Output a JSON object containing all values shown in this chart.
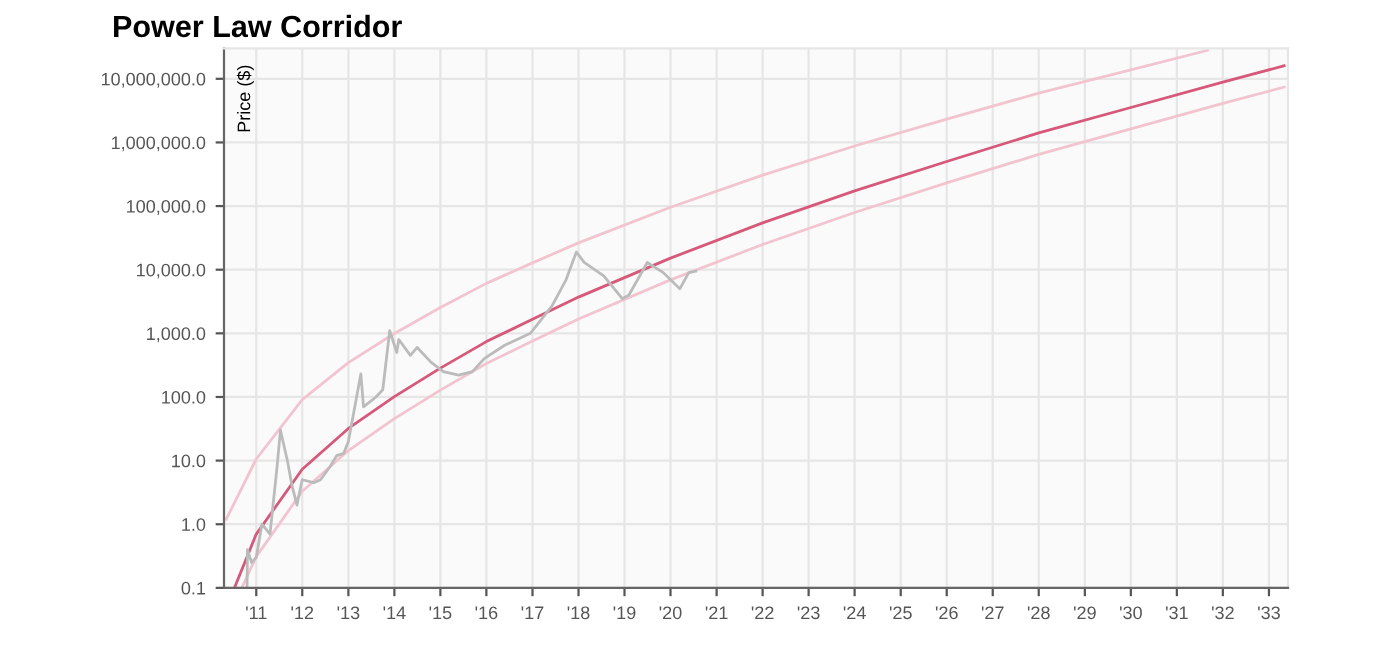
{
  "chart_data": {
    "type": "line",
    "title": "Power Law Corridor",
    "ylabel": "Price ($)",
    "log": "y",
    "grid": true,
    "xlim": [
      "2010-04-20",
      "2033-06-01"
    ],
    "ylim": [
      0.1,
      30000000
    ],
    "xticks": [
      {
        "value": "2011",
        "label": "'11"
      },
      {
        "value": "2012",
        "label": "'12"
      },
      {
        "value": "2013",
        "label": "'13"
      },
      {
        "value": "2014",
        "label": "'14"
      },
      {
        "value": "2015",
        "label": "'15"
      },
      {
        "value": "2016",
        "label": "'16"
      },
      {
        "value": "2017",
        "label": "'17"
      },
      {
        "value": "2018",
        "label": "'18"
      },
      {
        "value": "2019",
        "label": "'19"
      },
      {
        "value": "2020",
        "label": "'20"
      },
      {
        "value": "2021",
        "label": "'21"
      },
      {
        "value": "2022",
        "label": "'22"
      },
      {
        "value": "2023",
        "label": "'23"
      },
      {
        "value": "2024",
        "label": "'24"
      },
      {
        "value": "2025",
        "label": "'25"
      },
      {
        "value": "2026",
        "label": "'26"
      },
      {
        "value": "2027",
        "label": "'27"
      },
      {
        "value": "2028",
        "label": "'28"
      },
      {
        "value": "2029",
        "label": "'29"
      },
      {
        "value": "2030",
        "label": "'30"
      },
      {
        "value": "2031",
        "label": "'31"
      },
      {
        "value": "2032",
        "label": "'32"
      },
      {
        "value": "2033",
        "label": "'33"
      }
    ],
    "yticks": [
      {
        "value": 0.1,
        "label": "0.1"
      },
      {
        "value": 1,
        "label": "1.0"
      },
      {
        "value": 10,
        "label": "10.0"
      },
      {
        "value": 100,
        "label": "100.0"
      },
      {
        "value": 1000,
        "label": "1,000.0"
      },
      {
        "value": 10000,
        "label": "10,000.0"
      },
      {
        "value": 100000,
        "label": "100,000.0"
      },
      {
        "value": 1000000,
        "label": "1,000,000.0"
      },
      {
        "value": 10000000,
        "label": "10,000,000.0"
      }
    ],
    "series": [
      {
        "color": "#f2c4cf",
        "x": [
          "2010-05-08",
          "2011",
          "2012",
          "2013",
          "2014",
          "2015",
          "2016",
          "2017",
          "2018",
          "2020",
          "2022",
          "2024",
          "2026",
          "2028",
          "2030",
          "2031-09-01"
        ],
        "values": [
          1.2,
          10.6,
          91,
          347,
          993,
          2550,
          6100,
          12800,
          26400,
          95700,
          307000,
          878000,
          2320000,
          5950000,
          13800000,
          28000000
        ]
      },
      {
        "color": "#f2c4cf",
        "x": [
          "2010-09-08",
          "2011",
          "2012",
          "2013",
          "2014",
          "2015",
          "2016",
          "2017",
          "2018",
          "2020",
          "2022",
          "2024",
          "2026",
          "2028",
          "2030",
          "2032",
          "2033-05-01"
        ],
        "values": [
          0.1,
          0.31,
          3.3,
          14.4,
          45.7,
          128,
          336,
          755,
          1680,
          6920,
          24900,
          79100,
          231000,
          649000,
          1630000,
          4100000,
          7400000
        ]
      },
      {
        "color": "#d6587a",
        "x": [
          "2010-07-12",
          "2011",
          "2012",
          "2013",
          "2014",
          "2015",
          "2016",
          "2017",
          "2018",
          "2020",
          "2022",
          "2024",
          "2026",
          "2028",
          "2030",
          "2032",
          "2033-05-01"
        ],
        "values": [
          0.1,
          0.7,
          7.3,
          32,
          101,
          284,
          741,
          1670,
          3710,
          15200,
          54500,
          173000,
          502000,
          1410000,
          3540000,
          8870000,
          16000000
        ]
      },
      {
        "color": "#bbbbbb",
        "x": [
          "2010-10-20",
          "2010-10-23",
          "2010-11-25",
          "2011-01-01",
          "2011-02-15",
          "2011-04-20",
          "2011-06-15",
          "2011-07-12",
          "2011-09-05",
          "2011-10-12",
          "2011-11-20",
          "2012-01-01",
          "2012-04-01",
          "2012-05-25",
          "2012-08-08",
          "2012-10-01",
          "2012-11-25",
          "2013-01-01",
          "2013-04-10",
          "2013-05-01",
          "2013-08-08",
          "2013-10-01",
          "2013-11-25",
          "2014-01-20",
          "2014-02-05",
          "2014-05-08",
          "2014-07-01",
          "2014-10-20",
          "2015-01-25",
          "2015-05-25",
          "2015-09-12",
          "2015-12-15",
          "2016-05-25",
          "2016-12-15",
          "2017-06-05",
          "2017-09-25",
          "2017-12-15",
          "2018-02-15",
          "2018-07-20",
          "2018-12-15",
          "2019-02-05",
          "2019-07-01",
          "2019-11-05",
          "2020-03-15",
          "2020-05-25",
          "2020-07-20"
        ],
        "values": [
          0.1,
          0.4,
          0.25,
          0.3,
          1.0,
          0.7,
          8,
          30,
          10,
          4,
          2,
          5,
          4.5,
          5,
          8,
          12,
          13,
          20,
          230,
          70,
          100,
          130,
          1100,
          500,
          800,
          450,
          600,
          350,
          250,
          220,
          250,
          400,
          650,
          1000,
          2700,
          7000,
          19000,
          13000,
          8000,
          3500,
          4000,
          13000,
          9000,
          5000,
          9000,
          9500
        ]
      }
    ]
  }
}
